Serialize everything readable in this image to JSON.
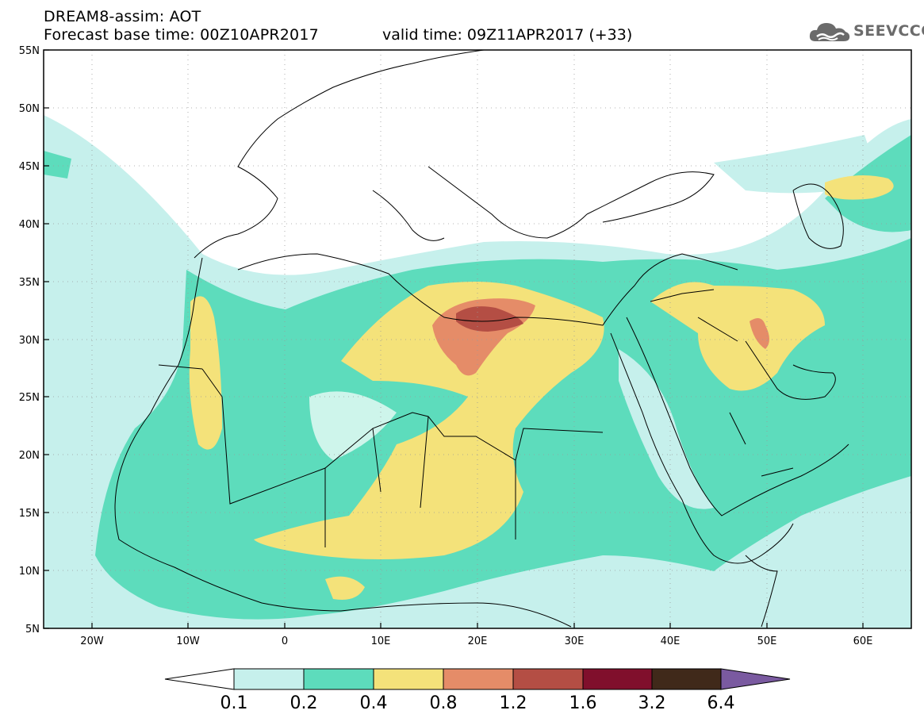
{
  "header": {
    "title": "DREAM8-assim: AOT",
    "base_time": "Forecast base time: 00Z10APR2017",
    "valid_time": "valid time: 09Z11APR2017 (+33)"
  },
  "logo": {
    "text": "SEEVCCC",
    "icon": "cloud-icon"
  },
  "map": {
    "extent": {
      "lon_min": -25,
      "lon_max": 65,
      "lat_min": 5,
      "lat_max": 55
    },
    "lat_labels": [
      "55N",
      "50N",
      "45N",
      "40N",
      "35N",
      "30N",
      "25N",
      "20N",
      "15N",
      "10N",
      "5N"
    ],
    "lon_labels": [
      "20W",
      "10W",
      "0",
      "10E",
      "20E",
      "30E",
      "40E",
      "50E",
      "60E"
    ],
    "grid": true
  },
  "colorbar": {
    "labels": [
      "0.1",
      "0.2",
      "0.4",
      "0.8",
      "1.2",
      "1.6",
      "3.2",
      "6.4"
    ],
    "colors": [
      "#c6f0ec",
      "#5ddcbc",
      "#f4e27a",
      "#e58c68",
      "#b44e44",
      "#800f2c",
      "#40291a",
      "#7a5aa0"
    ]
  }
}
